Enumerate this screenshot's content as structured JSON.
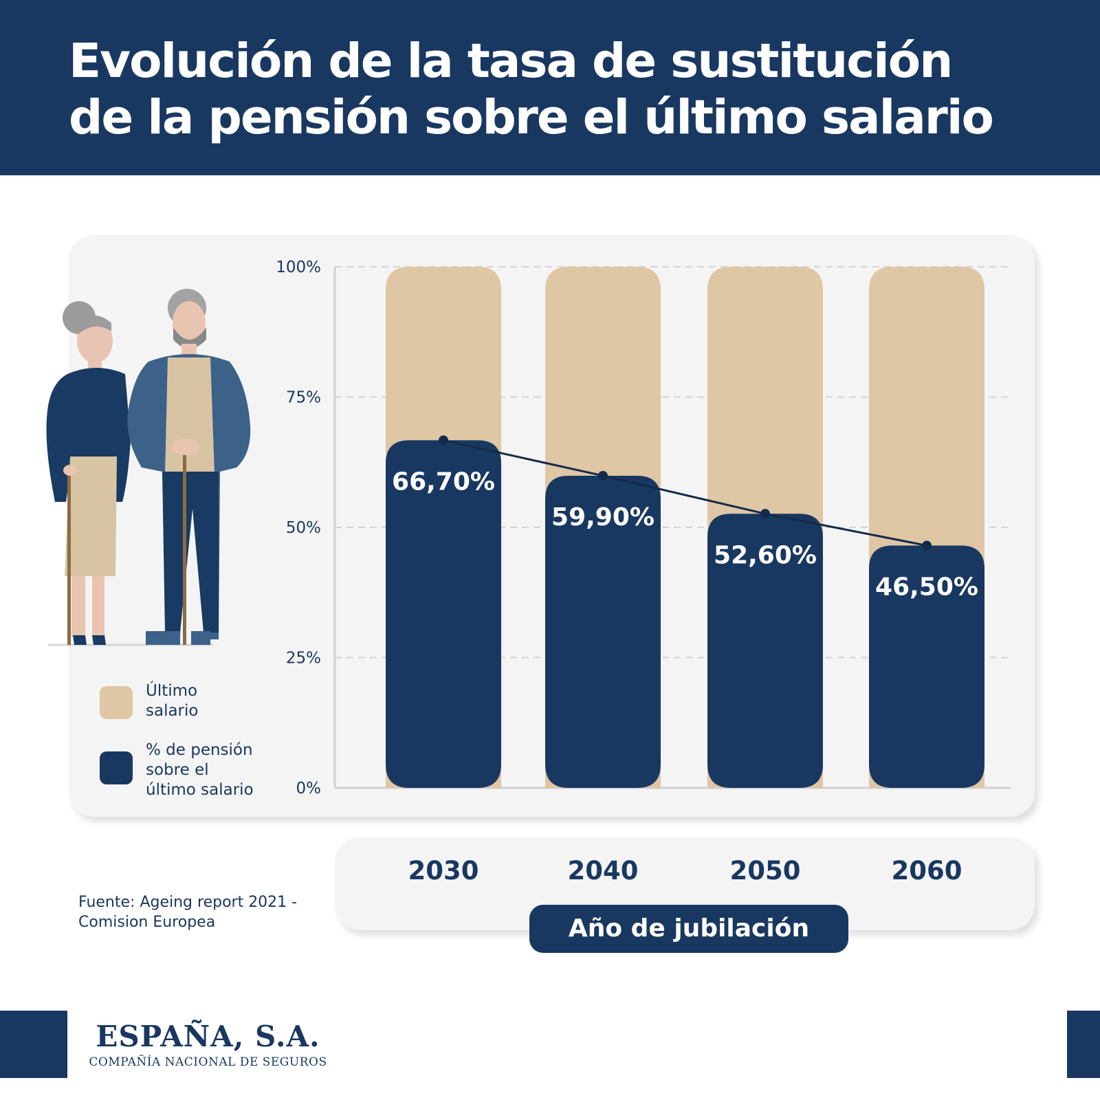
{
  "header": {
    "title_line1": "Evolución de la tasa de sustitución",
    "title_line2": "de la pensión sobre el último salario"
  },
  "legend": {
    "salary_line1": "Último",
    "salary_line2": "salario",
    "pension_line1": "% de pensión",
    "pension_line2": "sobre el",
    "pension_line3": "último salario"
  },
  "source": {
    "line1": "Fuente: Ageing report 2021 -",
    "line2": "Comision Europea"
  },
  "brand": {
    "name": "ESPAÑA, S.A.",
    "subtitle": "COMPAÑÍA NACIONAL DE SEGUROS"
  },
  "colors": {
    "navy": "#193861",
    "beige": "#dfc6a4",
    "grid": "#d4d4d4"
  },
  "chart_data": {
    "type": "bar",
    "title": "Evolución de la tasa de sustitución de la pensión sobre el último salario",
    "xlabel": "Año de jubilación",
    "ylabel": "",
    "categories": [
      "2030",
      "2040",
      "2050",
      "2060"
    ],
    "ylim": [
      0,
      100
    ],
    "yticks": [
      "0%",
      "25%",
      "50%",
      "75%",
      "100%"
    ],
    "grid": true,
    "legend_position": "left",
    "series": [
      {
        "name": "Último salario",
        "values": [
          100,
          100,
          100,
          100
        ],
        "color": "#dfc6a4"
      },
      {
        "name": "% de pensión sobre el último salario",
        "values": [
          66.7,
          59.9,
          52.6,
          46.5
        ],
        "labels": [
          "66,70%",
          "59,90%",
          "52,60%",
          "46,50%"
        ],
        "color": "#193861"
      }
    ]
  }
}
